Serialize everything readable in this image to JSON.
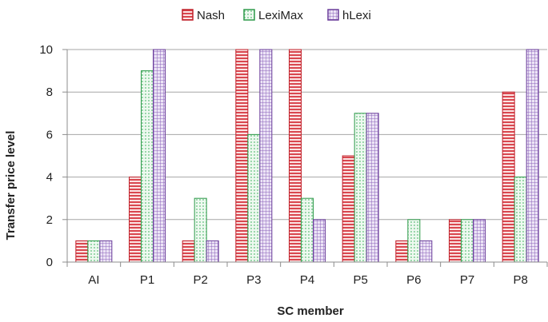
{
  "chart_data": {
    "type": "bar",
    "categories": [
      "AI",
      "P1",
      "P2",
      "P3",
      "P4",
      "P5",
      "P6",
      "P7",
      "P8"
    ],
    "series": [
      {
        "name": "Nash",
        "values": [
          1,
          4,
          1,
          10,
          10,
          5,
          1,
          2,
          8
        ],
        "color": "#c0202a",
        "fill": "#f4c6c6",
        "pattern": "horizontal-stripes"
      },
      {
        "name": "LexiMax",
        "values": [
          1,
          9,
          3,
          6,
          3,
          7,
          2,
          2,
          4
        ],
        "color": "#2e9a4a",
        "fill": "#e2f5e6",
        "pattern": "dots"
      },
      {
        "name": "hLexi",
        "values": [
          1,
          10,
          1,
          10,
          2,
          7,
          1,
          2,
          10
        ],
        "color": "#6a3d9a",
        "fill": "#ddd0ee",
        "pattern": "grid"
      }
    ],
    "xlabel": "SC member",
    "ylabel": "Transfer price level",
    "ylim": [
      0,
      10
    ],
    "yticks": [
      0,
      2,
      4,
      6,
      8,
      10
    ],
    "grid": true,
    "legend_position": "top"
  }
}
